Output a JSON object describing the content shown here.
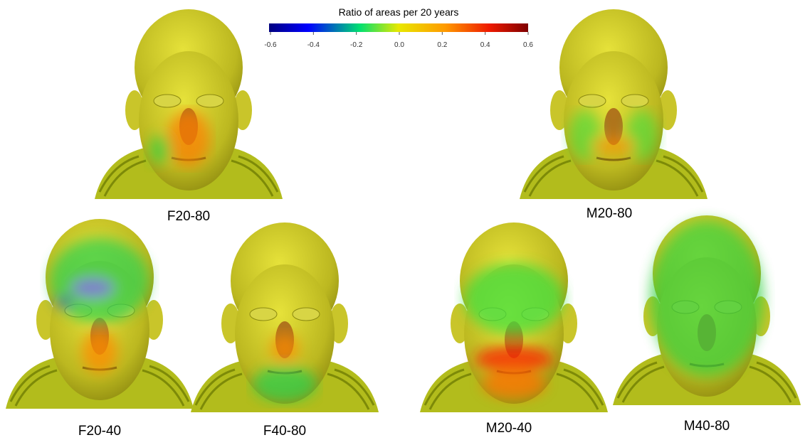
{
  "colorbar": {
    "title": "Ratio of areas per 20 years",
    "lim": [
      -0.6,
      0.6
    ],
    "ticks": [
      -0.6,
      -0.4,
      -0.2,
      {
        "value": 0,
        "label": "0.0"
      },
      0.2,
      0.4,
      0.6
    ]
  },
  "panels": [
    {
      "label": "F20-80"
    },
    {
      "label": "M20-80"
    },
    {
      "label": "F20-40"
    },
    {
      "label": "F40-80"
    },
    {
      "label": "M20-40"
    },
    {
      "label": "M40-80"
    }
  ]
}
